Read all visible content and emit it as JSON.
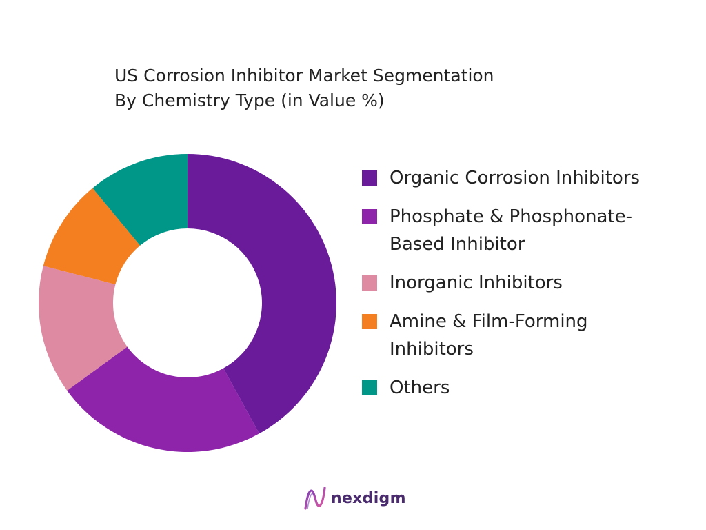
{
  "chart_data": {
    "type": "pie",
    "variant": "donut",
    "title_lines": [
      "US Corrosion Inhibitor Market Segmentation",
      "By Chemistry Type  (in Value %)"
    ],
    "legend_placement": "right",
    "slices": [
      {
        "label": "Organic Corrosion Inhibitors",
        "value": 42,
        "color": "#6a1b9a"
      },
      {
        "label": "Phosphate & Phosphonate-\nBased Inhibitor",
        "value": 23,
        "color": "#8e24aa"
      },
      {
        "label": "Inorganic Inhibitors",
        "value": 14,
        "color": "#de8aa2"
      },
      {
        "label": "Amine & Film-Forming\nInhibitors",
        "value": 10,
        "color": "#f47f20"
      },
      {
        "label": "Others",
        "value": 11,
        "color": "#009688"
      }
    ]
  },
  "brand": {
    "name": "nexdigm",
    "logo_icon": "nexdigm-logo-icon",
    "color": "#4a2c6e"
  }
}
